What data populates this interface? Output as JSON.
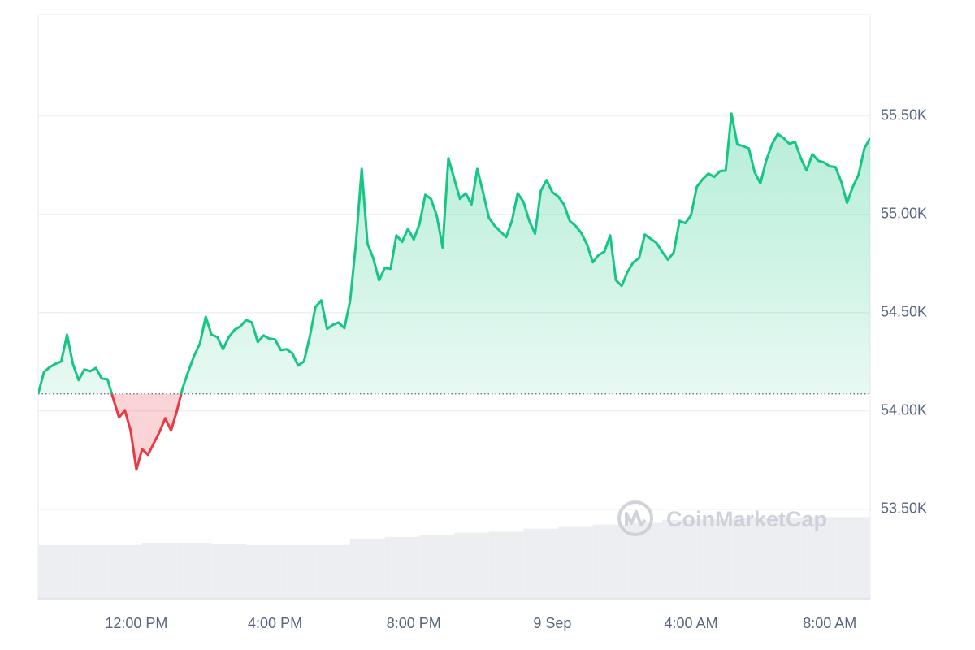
{
  "chart_data": {
    "type": "line",
    "xlim": [
      0,
      1440
    ],
    "xticks": [
      {
        "value": 170,
        "label": "12:00 PM"
      },
      {
        "value": 410,
        "label": "4:00 PM"
      },
      {
        "value": 650,
        "label": "8:00 PM"
      },
      {
        "value": 890,
        "label": "9 Sep"
      },
      {
        "value": 1130,
        "label": "4:00 AM"
      },
      {
        "value": 1370,
        "label": "8:00 AM"
      }
    ],
    "ylim": [
      53045,
      56015
    ],
    "yticks": [
      {
        "value": 53500,
        "label": "53.50K"
      },
      {
        "value": 54000,
        "label": "54.00K"
      },
      {
        "value": 54500,
        "label": "54.50K"
      },
      {
        "value": 55000,
        "label": "55.00K"
      },
      {
        "value": 55500,
        "label": "55.50K"
      }
    ],
    "y2lim": [
      0,
      100
    ],
    "grid": true,
    "watermark": "CoinMarketCap",
    "series": [
      {
        "color": "#16c784",
        "down_color": "#ea3943",
        "x": [
          0,
          10,
          20,
          30,
          40,
          50,
          60,
          70,
          80,
          90,
          100,
          110,
          120,
          130,
          140,
          150,
          160,
          170,
          180,
          190,
          200,
          210,
          220,
          230,
          240,
          250,
          260,
          270,
          280,
          290,
          300,
          310,
          320,
          330,
          340,
          350,
          360,
          370,
          380,
          390,
          400,
          410,
          420,
          430,
          440,
          450,
          460,
          470,
          480,
          490,
          500,
          510,
          520,
          530,
          540,
          550,
          560,
          570,
          580,
          590,
          600,
          610,
          620,
          630,
          640,
          650,
          660,
          670,
          680,
          690,
          700,
          710,
          720,
          730,
          740,
          750,
          760,
          770,
          780,
          790,
          800,
          810,
          820,
          830,
          840,
          850,
          860,
          870,
          880,
          890,
          900,
          910,
          920,
          930,
          940,
          950,
          960,
          970,
          980,
          990,
          1000,
          1010,
          1020,
          1030,
          1040,
          1050,
          1060,
          1070,
          1080,
          1090,
          1100,
          1110,
          1120,
          1130,
          1140,
          1150,
          1160,
          1170,
          1180,
          1190,
          1200,
          1210,
          1220,
          1230,
          1240,
          1250,
          1260,
          1270,
          1280,
          1290,
          1300,
          1310,
          1320,
          1330,
          1340,
          1350,
          1360,
          1370,
          1380,
          1390,
          1400,
          1410,
          1420,
          1430,
          1440
        ],
        "values": [
          54087,
          54198,
          54223,
          54240,
          54252,
          54388,
          54240,
          54157,
          54211,
          54202,
          54219,
          54165,
          54161,
          54062,
          53967,
          54004,
          53901,
          53702,
          53806,
          53777,
          53835,
          53893,
          53963,
          53901,
          54000,
          54116,
          54202,
          54281,
          54343,
          54479,
          54388,
          54376,
          54314,
          54376,
          54413,
          54430,
          54463,
          54450,
          54351,
          54384,
          54368,
          54364,
          54310,
          54314,
          54293,
          54231,
          54252,
          54376,
          54529,
          54562,
          54417,
          54438,
          54450,
          54421,
          54562,
          54851,
          55231,
          54851,
          54777,
          54665,
          54727,
          54723,
          54893,
          54860,
          54926,
          54872,
          54950,
          55099,
          55078,
          54992,
          54831,
          55285,
          55182,
          55078,
          55107,
          55050,
          55231,
          55112,
          54983,
          54942,
          54913,
          54884,
          54967,
          55107,
          55062,
          54967,
          54901,
          55120,
          55174,
          55112,
          55091,
          55050,
          54967,
          54942,
          54905,
          54847,
          54756,
          54793,
          54810,
          54893,
          54665,
          54636,
          54707,
          54756,
          54777,
          54897,
          54876,
          54855,
          54810,
          54769,
          54806,
          54967,
          54955,
          54996,
          55140,
          55178,
          55207,
          55190,
          55219,
          55223,
          55512,
          55355,
          55347,
          55335,
          55215,
          55157,
          55273,
          55355,
          55409,
          55388,
          55359,
          55368,
          55285,
          55223,
          55306,
          55273,
          55264,
          55244,
          55240,
          55165,
          55058,
          55140,
          55202,
          55335,
          55388
        ]
      },
      {
        "type": "bar",
        "axis": "y2",
        "color": "#eceef2",
        "x": [
          0,
          60,
          120,
          180,
          240,
          300,
          360,
          420,
          480,
          540,
          600,
          660,
          720,
          780,
          840,
          900,
          960,
          1020,
          1080,
          1140,
          1200,
          1260,
          1320,
          1380
        ],
        "values": [
          9.2,
          9.2,
          9.2,
          9.6,
          9.6,
          9.4,
          9.2,
          9.2,
          9.2,
          10.2,
          10.6,
          10.9,
          11.3,
          11.5,
          12.0,
          12.3,
          12.7,
          13.0,
          13.5,
          13.6,
          13.8,
          13.9,
          14.0,
          14.0
        ]
      }
    ]
  }
}
